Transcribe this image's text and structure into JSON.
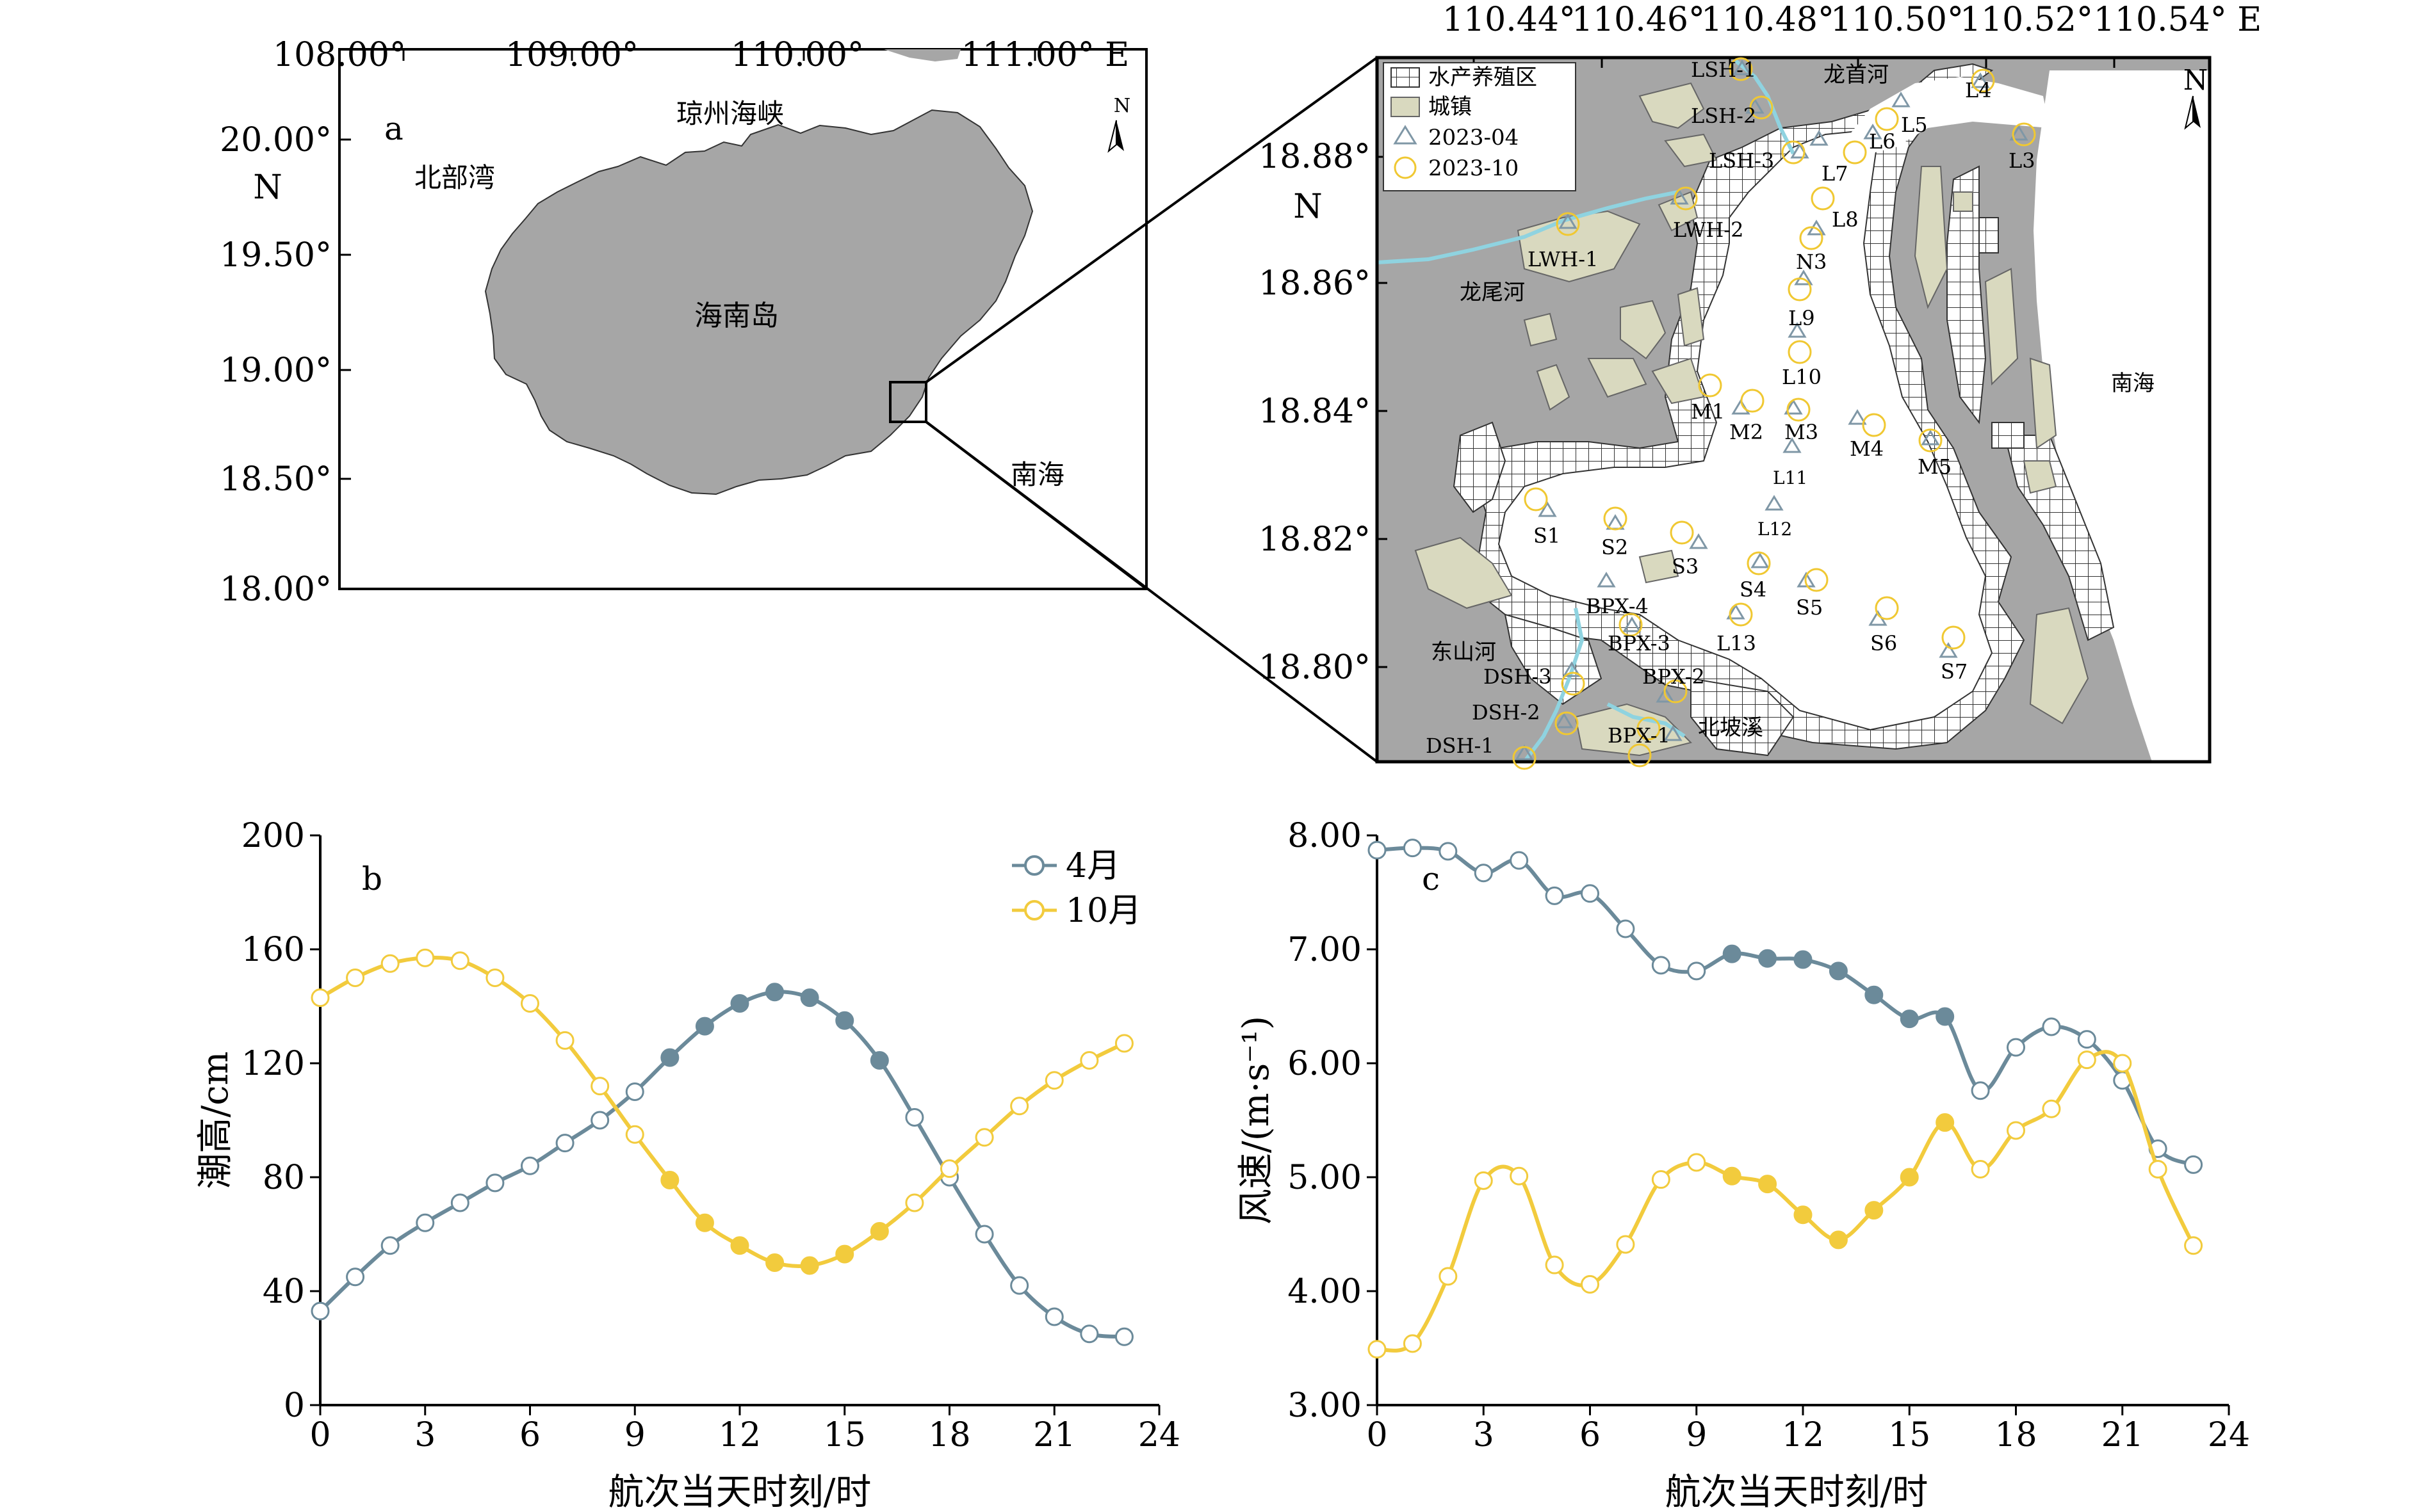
{
  "map_a": {
    "panel_label": "a",
    "x_ticks": [
      "108.00°",
      "109.00°",
      "110.00°",
      "111.00° E"
    ],
    "y_ticks": [
      "20.00°",
      "19.50°",
      "19.00°",
      "18.50°",
      "18.00°"
    ],
    "y_axis_letter": "N",
    "north_label": "N",
    "place_labels": {
      "strait": "琼州海峡",
      "gulf": "北部湾",
      "island": "海南岛",
      "sea": "南海"
    },
    "colors": {
      "land": "#a6a6a6",
      "frame": "#000000"
    }
  },
  "map_detail": {
    "x_ticks": [
      "110.44°",
      "110.46°",
      "110.48°",
      "110.50°",
      "110.52°",
      "110.54° E"
    ],
    "y_ticks": [
      "18.88°",
      "18.86°",
      "18.84°",
      "18.82°",
      "18.80°"
    ],
    "y_axis_letter": "N",
    "north_label": "N",
    "legend": {
      "aquaculture": "水产养殖区",
      "town": "城镇",
      "triangle": "2023-04",
      "circle": "2023-10"
    },
    "rivers": {
      "longshou": "龙首河",
      "longwei": "龙尾河",
      "dongshan": "东山河",
      "beipo": "北坡溪"
    },
    "sea": "南海",
    "stations": {
      "LSH1": "LSH-1",
      "LSH2": "LSH-2",
      "LSH3": "LSH-3",
      "LWH1": "LWH-1",
      "LWH2": "LWH-2",
      "L3": "L3",
      "L4": "L4",
      "L5": "L5",
      "L6": "L6",
      "L7": "L7",
      "L8": "L8",
      "N3": "N3",
      "L9": "L9",
      "L10": "L10",
      "L11": "L11",
      "L12": "L12",
      "L13": "L13",
      "M1": "M1",
      "M2": "M2",
      "M3": "M3",
      "M4": "M4",
      "M5": "M5",
      "S1": "S1",
      "S2": "S2",
      "S3": "S3",
      "S4": "S4",
      "S5": "S5",
      "S6": "S6",
      "S7": "S7",
      "BPX4": "BPX-4",
      "BPX3": "BPX-3",
      "BPX2": "BPX-2",
      "BPX1": "BPX-1",
      "DSH3": "DSH-3",
      "DSH2": "DSH-2",
      "DSH1": "DSH-1"
    },
    "colors": {
      "land": "#a6a6a6",
      "town": "#d9d9bf",
      "river": "#8fd3e0",
      "triangle": "#7f97a6",
      "circle": "#f0c832",
      "water": "#ffffff"
    }
  },
  "chart_data": [
    {
      "type": "line",
      "panel_label": "b",
      "xlabel": "航次当天时刻/时",
      "ylabel": "潮高/cm",
      "xlim": [
        0,
        24
      ],
      "ylim": [
        0,
        200
      ],
      "x_ticks": [
        "0",
        "3",
        "6",
        "9",
        "12",
        "15",
        "18",
        "21",
        "24"
      ],
      "y_ticks": [
        "0",
        "40",
        "80",
        "120",
        "160",
        "200"
      ],
      "x": [
        0,
        1,
        2,
        3,
        4,
        5,
        6,
        7,
        8,
        9,
        10,
        11,
        12,
        13,
        14,
        15,
        16,
        17,
        18,
        19,
        20,
        21,
        22,
        23
      ],
      "series": [
        {
          "name": "4月",
          "color": "#6b8a9a",
          "values": [
            33,
            45,
            56,
            64,
            71,
            78,
            84,
            92,
            100,
            110,
            122,
            133,
            141,
            145,
            143,
            135,
            121,
            101,
            80,
            60,
            42,
            31,
            25,
            24
          ],
          "filled": [
            false,
            false,
            false,
            false,
            false,
            false,
            false,
            false,
            false,
            false,
            true,
            true,
            true,
            true,
            true,
            true,
            true,
            false,
            false,
            false,
            false,
            false,
            false,
            false
          ]
        },
        {
          "name": "10月",
          "color": "#f2cb3d",
          "values": [
            143,
            150,
            155,
            157,
            156,
            150,
            141,
            128,
            112,
            95,
            79,
            64,
            56,
            50,
            49,
            53,
            61,
            71,
            83,
            94,
            105,
            114,
            121,
            127
          ],
          "filled": [
            false,
            false,
            false,
            false,
            false,
            false,
            false,
            false,
            false,
            false,
            true,
            true,
            true,
            true,
            true,
            true,
            true,
            false,
            false,
            false,
            false,
            false,
            false,
            false
          ]
        }
      ],
      "legend": "top-right",
      "grid": false
    },
    {
      "type": "line",
      "panel_label": "c",
      "xlabel": "航次当天时刻/时",
      "ylabel": "风速/(m·s⁻¹)",
      "xlim": [
        0,
        24
      ],
      "ylim": [
        3,
        8
      ],
      "x_ticks": [
        "0",
        "3",
        "6",
        "9",
        "12",
        "15",
        "18",
        "21",
        "24"
      ],
      "y_ticks": [
        "3.00",
        "4.00",
        "5.00",
        "6.00",
        "7.00",
        "8.00"
      ],
      "x": [
        0,
        1,
        2,
        3,
        4,
        5,
        6,
        7,
        8,
        9,
        10,
        11,
        12,
        13,
        14,
        15,
        16,
        17,
        18,
        19,
        20,
        21,
        22,
        23
      ],
      "series": [
        {
          "name": "4月",
          "color": "#6b8a9a",
          "values": [
            7.87,
            7.89,
            7.86,
            7.67,
            7.78,
            7.47,
            7.49,
            7.18,
            6.86,
            6.81,
            6.96,
            6.92,
            6.91,
            6.81,
            6.6,
            6.39,
            6.41,
            5.76,
            6.14,
            6.32,
            6.21,
            5.85,
            5.25,
            5.11
          ],
          "filled": [
            false,
            false,
            false,
            false,
            false,
            false,
            false,
            false,
            false,
            false,
            true,
            true,
            true,
            true,
            true,
            true,
            true,
            false,
            false,
            false,
            false,
            false,
            false,
            false
          ]
        },
        {
          "name": "10月",
          "color": "#f2cb3d",
          "values": [
            3.49,
            3.54,
            4.13,
            4.97,
            5.01,
            4.23,
            4.06,
            4.41,
            4.98,
            5.13,
            5.01,
            4.94,
            4.67,
            4.45,
            4.71,
            5.0,
            5.48,
            5.07,
            5.41,
            5.6,
            6.03,
            6.0,
            5.07,
            4.4
          ],
          "filled": [
            false,
            false,
            false,
            false,
            false,
            false,
            false,
            false,
            false,
            false,
            true,
            true,
            true,
            true,
            true,
            true,
            true,
            false,
            false,
            false,
            false,
            false,
            false,
            false
          ]
        }
      ],
      "grid": false
    }
  ]
}
